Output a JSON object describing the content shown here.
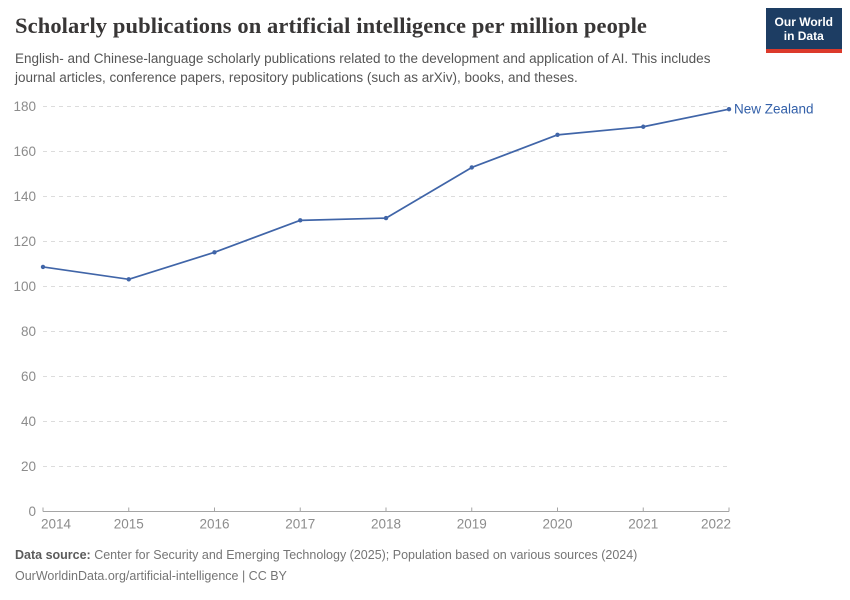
{
  "header": {
    "title": "Scholarly publications on artificial intelligence per million people",
    "subtitle": "English- and Chinese-language scholarly publications related to the development and application of AI. This includes journal articles, conference papers, repository publications (such as arXiv), books, and theses.",
    "logo": {
      "line1": "Our World",
      "line2": "in Data",
      "bg_color": "#1d3d63",
      "accent_color": "#dc3a2b"
    }
  },
  "chart_data": {
    "type": "line",
    "title": "Scholarly publications on artificial intelligence per million people",
    "x": [
      2014,
      2015,
      2016,
      2017,
      2018,
      2019,
      2020,
      2021,
      2022
    ],
    "xlabel": "",
    "ylabel": "",
    "ylim": [
      0,
      180
    ],
    "yticks": [
      0,
      20,
      40,
      60,
      80,
      100,
      120,
      140,
      160,
      180
    ],
    "grid": "horizontal-dashed",
    "legend": "inline-end-label",
    "series": [
      {
        "name": "New Zealand",
        "color": "#4065a8",
        "label_color": "#3360a9",
        "values": [
          108.7,
          103.2,
          115.2,
          129.4,
          130.4,
          152.9,
          167.4,
          171.0,
          178.8
        ]
      }
    ],
    "colors": {
      "grid": "#dcdcdc",
      "axis_line": "#a5a5a5",
      "axis_text": "#8c8c8c"
    }
  },
  "footer": {
    "datasource_label": "Data source:",
    "datasource_text": " Center for Security and Emerging Technology (2025); Population based on various sources (2024)",
    "license_line": "OurWorldinData.org/artificial-intelligence | CC BY"
  }
}
